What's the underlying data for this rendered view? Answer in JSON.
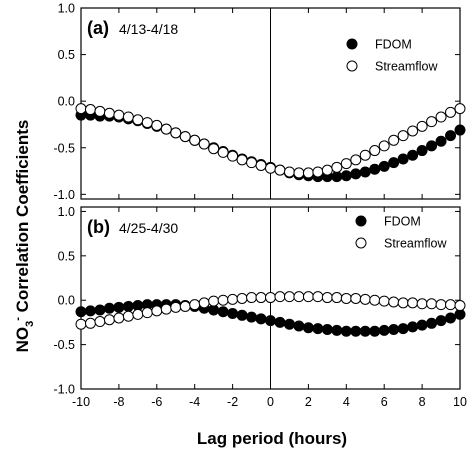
{
  "chart_data": {
    "type": "scatter",
    "xlabel": "Lag period (hours)",
    "ylabel": {
      "main": "NO",
      "sub": "3",
      "sup": "-",
      "rest": " Correlation Coefficients"
    },
    "xlim": [
      -10,
      10
    ],
    "x_ticks": [
      -10,
      -8,
      -6,
      -4,
      -2,
      0,
      2,
      4,
      6,
      8,
      10
    ],
    "y_ticks": [
      1.0,
      0.5,
      0.0,
      -0.5,
      -1.0
    ],
    "y_tick_labels": [
      "1.0",
      "0.5",
      "0.0",
      "-0.5",
      "-1.0"
    ],
    "grid": false,
    "panels": [
      {
        "label": "(a)",
        "period": "4/13-4/18",
        "ylim": [
          -1.05,
          1.0
        ],
        "y_tick_labels_shown": [
          "1.0",
          "0.5",
          "0.0",
          "-0.5",
          "-1.0"
        ],
        "legend_position": "top-right",
        "x": [
          -10,
          -9.5,
          -9,
          -8.5,
          -8,
          -7.5,
          -7,
          -6.5,
          -6,
          -5.5,
          -5,
          -4.5,
          -4,
          -3.5,
          -3,
          -2.5,
          -2,
          -1.5,
          -1,
          -0.5,
          0,
          0.5,
          1,
          1.5,
          2,
          2.5,
          3,
          3.5,
          4,
          4.5,
          5,
          5.5,
          6,
          6.5,
          7,
          7.5,
          8,
          8.5,
          9,
          9.5,
          10
        ],
        "series": [
          {
            "name": "FDOM",
            "marker": "filled-circle",
            "values": [
              -0.15,
              -0.15,
              -0.16,
              -0.16,
              -0.17,
              -0.19,
              -0.21,
              -0.24,
              -0.27,
              -0.3,
              -0.34,
              -0.38,
              -0.42,
              -0.46,
              -0.5,
              -0.54,
              -0.58,
              -0.62,
              -0.65,
              -0.68,
              -0.71,
              -0.74,
              -0.77,
              -0.79,
              -0.8,
              -0.81,
              -0.81,
              -0.81,
              -0.8,
              -0.78,
              -0.76,
              -0.73,
              -0.7,
              -0.66,
              -0.62,
              -0.58,
              -0.53,
              -0.48,
              -0.43,
              -0.37,
              -0.31
            ]
          },
          {
            "name": "Streamflow",
            "marker": "open-circle",
            "values": [
              -0.08,
              -0.09,
              -0.11,
              -0.13,
              -0.15,
              -0.17,
              -0.2,
              -0.23,
              -0.26,
              -0.3,
              -0.34,
              -0.38,
              -0.42,
              -0.46,
              -0.51,
              -0.55,
              -0.59,
              -0.63,
              -0.66,
              -0.69,
              -0.72,
              -0.74,
              -0.76,
              -0.77,
              -0.77,
              -0.76,
              -0.74,
              -0.71,
              -0.67,
              -0.63,
              -0.58,
              -0.53,
              -0.48,
              -0.42,
              -0.37,
              -0.32,
              -0.27,
              -0.22,
              -0.17,
              -0.12,
              -0.08
            ]
          }
        ]
      },
      {
        "label": "(b)",
        "period": "4/25-4/30",
        "ylim": [
          -1.0,
          1.05
        ],
        "y_tick_labels_shown": [
          "1.0",
          "0.5",
          "0.0",
          "-0.5",
          "-1.0"
        ],
        "legend_position": "top-right",
        "x": [
          -10,
          -9.5,
          -9,
          -8.5,
          -8,
          -7.5,
          -7,
          -6.5,
          -6,
          -5.5,
          -5,
          -4.5,
          -4,
          -3.5,
          -3,
          -2.5,
          -2,
          -1.5,
          -1,
          -0.5,
          0,
          0.5,
          1,
          1.5,
          2,
          2.5,
          3,
          3.5,
          4,
          4.5,
          5,
          5.5,
          6,
          6.5,
          7,
          7.5,
          8,
          8.5,
          9,
          9.5,
          10
        ],
        "series": [
          {
            "name": "FDOM",
            "marker": "filled-circle",
            "values": [
              -0.13,
              -0.12,
              -0.11,
              -0.09,
              -0.08,
              -0.07,
              -0.06,
              -0.05,
              -0.05,
              -0.05,
              -0.05,
              -0.06,
              -0.07,
              -0.09,
              -0.11,
              -0.13,
              -0.15,
              -0.17,
              -0.19,
              -0.21,
              -0.23,
              -0.25,
              -0.27,
              -0.29,
              -0.31,
              -0.32,
              -0.33,
              -0.34,
              -0.35,
              -0.35,
              -0.35,
              -0.35,
              -0.34,
              -0.33,
              -0.32,
              -0.3,
              -0.28,
              -0.26,
              -0.23,
              -0.2,
              -0.16
            ]
          },
          {
            "name": "Streamflow",
            "marker": "open-circle",
            "values": [
              -0.27,
              -0.26,
              -0.24,
              -0.22,
              -0.2,
              -0.18,
              -0.16,
              -0.14,
              -0.12,
              -0.1,
              -0.08,
              -0.07,
              -0.05,
              -0.03,
              -0.01,
              0.0,
              0.01,
              0.02,
              0.03,
              0.03,
              0.03,
              0.04,
              0.04,
              0.04,
              0.04,
              0.04,
              0.03,
              0.03,
              0.02,
              0.02,
              0.01,
              0.0,
              -0.01,
              -0.02,
              -0.03,
              -0.03,
              -0.04,
              -0.04,
              -0.05,
              -0.05,
              -0.06
            ]
          }
        ]
      }
    ]
  }
}
